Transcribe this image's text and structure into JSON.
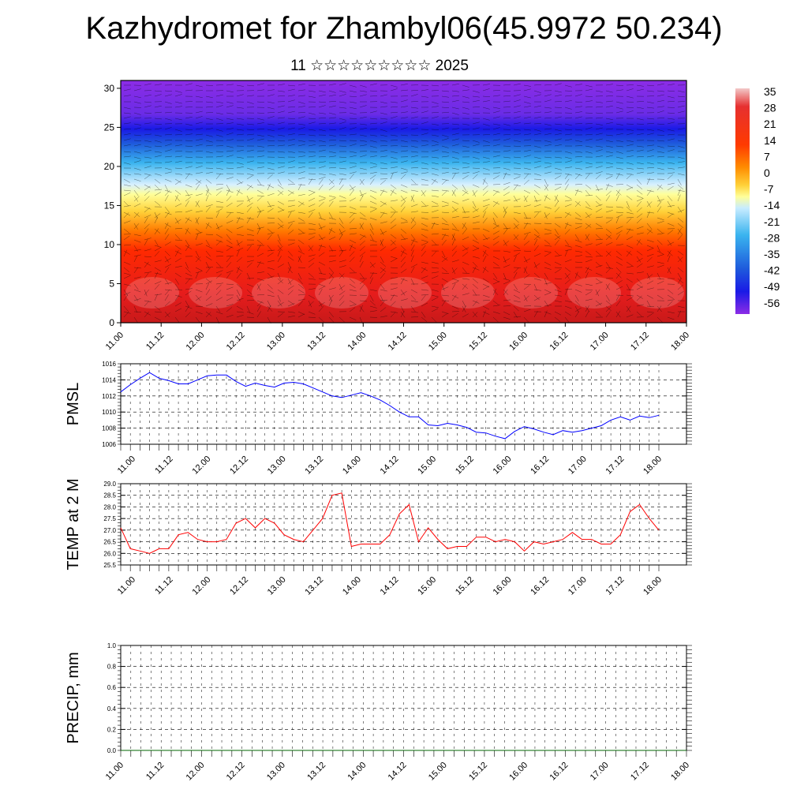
{
  "title": "Kazhydromet for Zhambyl06(45.9972 50.234)",
  "subtitle": "11 ☆☆☆☆☆☆☆☆☆ 2025",
  "colors": {
    "pmsl_line": "#0000ff",
    "temp_line": "#ff0000",
    "precip_line": "#006400",
    "grid": "#000000"
  },
  "chart_data": [
    {
      "type": "heatmap",
      "x_ticks": [
        "11.00",
        "11.12",
        "12.00",
        "12.12",
        "13.00",
        "13.12",
        "14.00",
        "14.12",
        "15.00",
        "15.12",
        "16.00",
        "16.12",
        "17.00",
        "17.12",
        "18.00"
      ],
      "y_ticks": [
        0,
        5,
        10,
        15,
        20,
        25,
        30
      ],
      "ylim": [
        0,
        31
      ],
      "field": "temperature with wind barbs",
      "colorbar": {
        "labels": [
          "35",
          "28",
          "21",
          "14",
          "7",
          "0",
          "-7",
          "-14",
          "-21",
          "-28",
          "-35",
          "-42",
          "-49",
          "-56"
        ],
        "colors": [
          "#f2b8b8",
          "#e02020",
          "#ff7a00",
          "#ffd23a",
          "#ffff9a",
          "#c8ecff",
          "#3ab4ef",
          "#1e5adc",
          "#1a1ae6",
          "#8c2ce6"
        ]
      }
    },
    {
      "type": "line",
      "ylabel": "PMSL",
      "ylim": [
        1006,
        1016
      ],
      "y_ticks": [
        "1016",
        "1014",
        "1012",
        "1010",
        "1008",
        "1006"
      ],
      "x_ticks": [
        "11.00",
        "11.12",
        "12.00",
        "12.12",
        "13.00",
        "13.12",
        "14.00",
        "14.12",
        "15.00",
        "15.12",
        "16.00",
        "16.12",
        "17.00",
        "17.12",
        "18.00"
      ],
      "x": [
        0,
        3,
        6,
        9,
        12,
        15,
        18,
        21,
        24,
        27,
        30,
        33,
        36,
        39,
        42,
        45,
        48,
        51,
        54,
        57,
        60,
        63,
        66,
        69,
        72,
        75,
        78,
        81,
        84,
        87,
        90,
        93,
        96,
        99,
        102,
        105,
        108,
        111,
        114,
        117,
        120,
        123,
        126,
        129,
        132,
        135,
        138,
        141,
        144,
        147,
        150,
        153,
        156,
        159,
        162,
        165,
        168
      ],
      "series": [
        {
          "values": [
            1012.5,
            1013.4,
            1014.2,
            1014.9,
            1014.2,
            1013.9,
            1013.5,
            1013.5,
            1014.0,
            1014.5,
            1014.6,
            1014.6,
            1013.8,
            1013.2,
            1013.6,
            1013.3,
            1013.1,
            1013.6,
            1013.7,
            1013.5,
            1013.0,
            1012.5,
            1012.0,
            1011.8,
            1012.1,
            1012.4,
            1012.0,
            1011.5,
            1010.8,
            1010.0,
            1009.4,
            1009.4,
            1008.4,
            1008.3,
            1008.6,
            1008.4,
            1008.1,
            1007.5,
            1007.4,
            1007.0,
            1006.7,
            1007.6,
            1008.2,
            1007.9,
            1007.5,
            1007.2,
            1007.7,
            1007.5,
            1007.7,
            1008.0,
            1008.3,
            1009.0,
            1009.4,
            1009.0,
            1009.5,
            1009.3,
            1009.6
          ]
        }
      ]
    },
    {
      "type": "line",
      "ylabel": "TEMP at 2 M",
      "ylim": [
        25.5,
        29.0
      ],
      "y_ticks": [
        "29.0",
        "28.5",
        "28.0",
        "27.5",
        "27.0",
        "26.5",
        "26.0",
        "25.5"
      ],
      "x_ticks": [
        "11.00",
        "11.12",
        "12.00",
        "12.12",
        "13.00",
        "13.12",
        "14.00",
        "14.12",
        "15.00",
        "15.12",
        "16.00",
        "16.12",
        "17.00",
        "17.12",
        "18.00"
      ],
      "x": [
        0,
        3,
        6,
        9,
        12,
        15,
        18,
        21,
        24,
        27,
        30,
        33,
        36,
        39,
        42,
        45,
        48,
        51,
        54,
        57,
        60,
        63,
        66,
        69,
        72,
        75,
        78,
        81,
        84,
        87,
        90,
        93,
        96,
        99,
        102,
        105,
        108,
        111,
        114,
        117,
        120,
        123,
        126,
        129,
        132,
        135,
        138,
        141,
        144,
        147,
        150,
        153,
        156,
        159,
        162,
        165,
        168
      ],
      "series": [
        {
          "values": [
            27.1,
            26.2,
            26.1,
            26.0,
            26.2,
            26.2,
            26.8,
            26.9,
            26.6,
            26.5,
            26.5,
            26.6,
            27.3,
            27.5,
            27.1,
            27.5,
            27.3,
            26.8,
            26.6,
            26.5,
            27.0,
            27.5,
            28.5,
            28.6,
            26.3,
            26.4,
            26.4,
            26.4,
            26.8,
            27.7,
            28.1,
            26.5,
            27.1,
            26.6,
            26.2,
            26.3,
            26.3,
            26.7,
            26.7,
            26.5,
            26.6,
            26.5,
            26.1,
            26.5,
            26.4,
            26.5,
            26.6,
            26.9,
            26.6,
            26.6,
            26.4,
            26.4,
            26.8,
            27.8,
            28.1,
            27.5,
            27.0
          ]
        }
      ]
    },
    {
      "type": "line",
      "ylabel": "PRECIP, mm",
      "ylim": [
        0.0,
        1.0
      ],
      "y_ticks": [
        "1.0",
        "0.8",
        "0.6",
        "0.4",
        "0.2",
        "0.0"
      ],
      "x_ticks": [
        "11.00",
        "11.12",
        "12.00",
        "12.12",
        "13.00",
        "13.12",
        "14.00",
        "14.12",
        "15.00",
        "15.12",
        "16.00",
        "16.12",
        "17.00",
        "17.12",
        "18.00"
      ],
      "x": [
        0,
        168
      ],
      "series": [
        {
          "values": [
            0.0,
            0.0
          ]
        }
      ]
    }
  ]
}
